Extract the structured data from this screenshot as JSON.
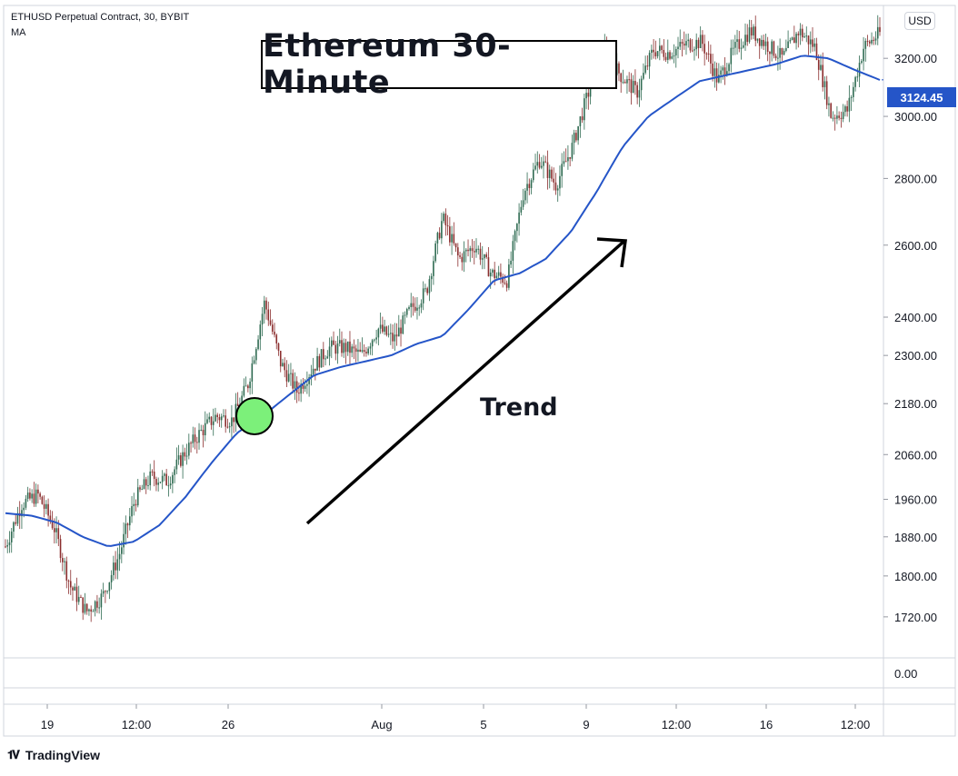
{
  "header": {
    "symbol": "ETHUSD Perpetual Contract, 30, BYBIT",
    "indicator": "MA"
  },
  "annotations": {
    "title": "Ethereum 30-Minute",
    "trend_label": "Trend"
  },
  "price_axis": {
    "currency": "USD",
    "last_price_label": "3124.45",
    "indicator_pane_label": "0.00"
  },
  "footer": {
    "brand": "TradingView"
  },
  "colors": {
    "ma_line": "#2555c8",
    "candle_up": "#2f6b52",
    "candle_down": "#8b2e2e",
    "marker_fill": "#7cf07a",
    "grid_border": "#d1d4dc"
  },
  "chart_data": {
    "type": "line",
    "title": "Ethereum 30-Minute",
    "ylabel": "",
    "xlabel": "",
    "y_scale": "log",
    "ylim": [
      1650,
      3380
    ],
    "y_ticks": [
      1720,
      1800,
      1880,
      1960,
      2060,
      2180,
      2300,
      2400,
      2600,
      2800,
      3000,
      3200
    ],
    "y_tick_labels": [
      "1720.00",
      "1800.00",
      "1880.00",
      "1960.00",
      "2060.00",
      "2180.00",
      "2300.00",
      "2400.00",
      "2600.00",
      "2800.00",
      "3000.00",
      "3200.00"
    ],
    "x_tick_labels": [
      "19",
      "12:00",
      "26",
      "Aug",
      "5",
      "9",
      "12:00",
      "16",
      "12:00"
    ],
    "last_price": 3124.45,
    "series": [
      {
        "name": "Price",
        "values": [
          1860,
          1950,
          1970,
          1900,
          1780,
          1730,
          1760,
          1840,
          1960,
          2010,
          2000,
          2060,
          2110,
          2150,
          2140,
          2230,
          2440,
          2280,
          2210,
          2270,
          2320,
          2320,
          2300,
          2370,
          2340,
          2420,
          2470,
          2680,
          2560,
          2600,
          2520,
          2500,
          2760,
          2860,
          2780,
          2900,
          3080,
          3220,
          3140,
          3080,
          3230,
          3220,
          3250,
          3260,
          3120,
          3230,
          3300,
          3250,
          3200,
          3300,
          3240,
          3000,
          3020,
          3240,
          3290
        ]
      },
      {
        "name": "MA",
        "values": [
          1930,
          1925,
          1910,
          1880,
          1860,
          1870,
          1905,
          1965,
          2040,
          2110,
          2150,
          2200,
          2250,
          2270,
          2285,
          2300,
          2330,
          2350,
          2420,
          2500,
          2520,
          2560,
          2640,
          2760,
          2900,
          3000,
          3060,
          3120,
          3140,
          3160,
          3180,
          3210,
          3200,
          3160,
          3124
        ]
      }
    ]
  }
}
